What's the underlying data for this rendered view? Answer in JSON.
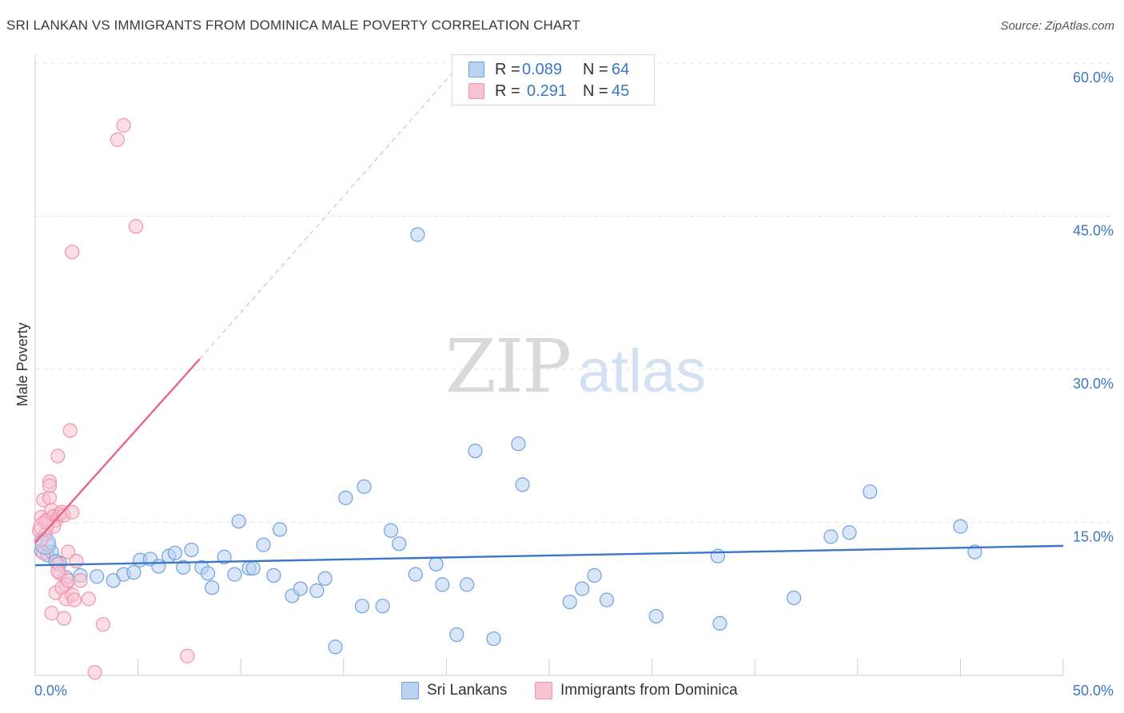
{
  "chart_data": {
    "type": "scatter",
    "title": "SRI LANKAN VS IMMIGRANTS FROM DOMINICA MALE POVERTY CORRELATION CHART",
    "source": "Source: ZipAtlas.com",
    "ylabel": "Male Poverty",
    "xlim": [
      0,
      50
    ],
    "ylim": [
      0,
      60
    ],
    "x_tick_labels": [
      "0.0%",
      "50.0%"
    ],
    "y_tick_labels": [
      "15.0%",
      "30.0%",
      "45.0%",
      "60.0%"
    ],
    "y_tick_values": [
      15,
      30,
      45,
      60
    ],
    "watermark": {
      "zip": "ZIP",
      "atlas": "atlas"
    },
    "legend": [
      {
        "r_label": "R =",
        "r_value": "0.089",
        "n_label": "N =",
        "n_value": "64"
      },
      {
        "r_label": "R =",
        "r_value": "0.291",
        "n_label": "N =",
        "n_value": "45"
      }
    ],
    "series": [
      {
        "name": "Sri Lankans",
        "color": "#6fa0e0",
        "fill": "#b9d2f2",
        "trend_color": "#3b77c5",
        "trend": {
          "x0": 0,
          "y0": 10.8,
          "x1": 50,
          "y1": 12.7
        },
        "points": [
          [
            0.3,
            12.2
          ],
          [
            0.6,
            11.8
          ],
          [
            0.8,
            12.1
          ],
          [
            1.2,
            11.0
          ],
          [
            1.5,
            9.6
          ],
          [
            2.2,
            9.8
          ],
          [
            3.0,
            9.7
          ],
          [
            3.8,
            9.3
          ],
          [
            4.3,
            9.9
          ],
          [
            4.8,
            10.1
          ],
          [
            5.1,
            11.3
          ],
          [
            5.6,
            11.4
          ],
          [
            6.0,
            10.7
          ],
          [
            6.5,
            11.7
          ],
          [
            6.8,
            12.0
          ],
          [
            7.2,
            10.6
          ],
          [
            7.6,
            12.3
          ],
          [
            8.1,
            10.6
          ],
          [
            8.4,
            10.0
          ],
          [
            8.6,
            8.6
          ],
          [
            9.2,
            11.6
          ],
          [
            9.7,
            9.9
          ],
          [
            9.9,
            15.1
          ],
          [
            10.4,
            10.5
          ],
          [
            10.6,
            10.5
          ],
          [
            11.1,
            12.8
          ],
          [
            11.6,
            9.8
          ],
          [
            11.9,
            14.3
          ],
          [
            12.5,
            7.8
          ],
          [
            12.9,
            8.5
          ],
          [
            13.7,
            8.3
          ],
          [
            14.1,
            9.5
          ],
          [
            14.6,
            2.8
          ],
          [
            15.1,
            17.4
          ],
          [
            15.9,
            6.8
          ],
          [
            16.0,
            18.5
          ],
          [
            16.9,
            6.8
          ],
          [
            17.3,
            14.2
          ],
          [
            17.7,
            12.9
          ],
          [
            18.5,
            9.9
          ],
          [
            18.6,
            43.2
          ],
          [
            19.5,
            10.9
          ],
          [
            19.8,
            8.9
          ],
          [
            20.5,
            4.0
          ],
          [
            21.0,
            8.9
          ],
          [
            21.4,
            22.0
          ],
          [
            22.3,
            3.6
          ],
          [
            23.5,
            22.7
          ],
          [
            23.7,
            18.7
          ],
          [
            26.0,
            7.2
          ],
          [
            26.6,
            8.5
          ],
          [
            27.2,
            9.8
          ],
          [
            27.8,
            7.4
          ],
          [
            30.2,
            5.8
          ],
          [
            33.2,
            11.7
          ],
          [
            33.3,
            5.1
          ],
          [
            36.9,
            7.6
          ],
          [
            38.7,
            13.6
          ],
          [
            39.6,
            14.0
          ],
          [
            40.6,
            18.0
          ],
          [
            45.0,
            14.6
          ],
          [
            45.7,
            12.1
          ],
          [
            0.6,
            12.9
          ],
          [
            1.0,
            11.2
          ]
        ]
      },
      {
        "name": "Immigrants from Dominica",
        "color": "#f093ae",
        "fill": "#f8c3d1",
        "trend_color": "#e8658b",
        "trend": {
          "x0": 0,
          "y0": 13.0,
          "x1": 8.0,
          "y1": 31.0
        },
        "trend_dashed": {
          "x0": 8.0,
          "y0": 31.0,
          "x1": 20.5,
          "y1": 59.5
        },
        "points": [
          [
            0.2,
            14.2
          ],
          [
            0.3,
            15.5
          ],
          [
            0.4,
            17.2
          ],
          [
            0.4,
            12.0
          ],
          [
            0.6,
            14.8
          ],
          [
            0.6,
            15.3
          ],
          [
            0.7,
            17.4
          ],
          [
            0.7,
            19.0
          ],
          [
            0.7,
            18.6
          ],
          [
            0.8,
            16.2
          ],
          [
            0.8,
            6.1
          ],
          [
            0.9,
            15.6
          ],
          [
            1.0,
            15.2
          ],
          [
            1.0,
            8.1
          ],
          [
            1.1,
            21.5
          ],
          [
            1.1,
            10.9
          ],
          [
            1.2,
            10.0
          ],
          [
            1.2,
            15.8
          ],
          [
            1.3,
            16.0
          ],
          [
            1.4,
            15.7
          ],
          [
            1.5,
            8.9
          ],
          [
            1.3,
            8.6
          ],
          [
            1.4,
            5.6
          ],
          [
            1.5,
            7.5
          ],
          [
            1.6,
            9.3
          ],
          [
            1.6,
            12.1
          ],
          [
            1.7,
            24.0
          ],
          [
            1.8,
            7.9
          ],
          [
            1.8,
            16.0
          ],
          [
            1.8,
            41.5
          ],
          [
            1.9,
            7.4
          ],
          [
            2.0,
            11.2
          ],
          [
            2.2,
            9.3
          ],
          [
            2.6,
            7.5
          ],
          [
            2.9,
            0.3
          ],
          [
            3.3,
            5.0
          ],
          [
            4.0,
            52.5
          ],
          [
            4.3,
            53.9
          ],
          [
            4.9,
            44.0
          ],
          [
            7.4,
            1.9
          ],
          [
            0.5,
            13.8
          ],
          [
            0.9,
            14.6
          ],
          [
            0.3,
            13.3
          ],
          [
            0.5,
            15.1
          ],
          [
            1.1,
            10.2
          ]
        ]
      }
    ]
  }
}
